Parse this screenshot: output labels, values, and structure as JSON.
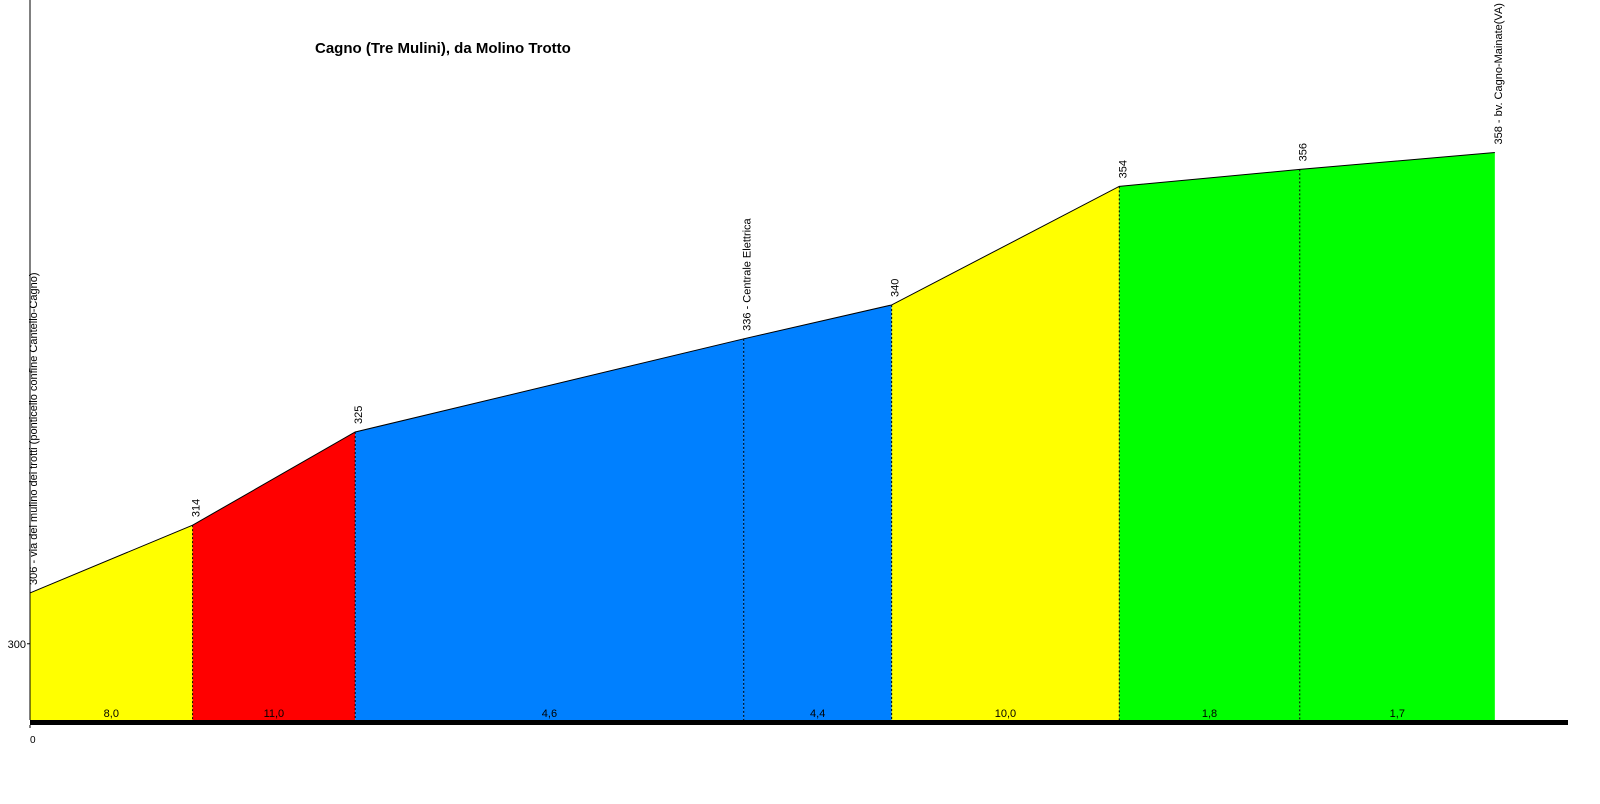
{
  "chart_data": {
    "type": "elevation-profile",
    "title": "Cagno (Tre Mulini), da Molino Trotto",
    "x": [
      0,
      100,
      200,
      439,
      530,
      670,
      781,
      901
    ],
    "values": [
      306,
      314,
      325,
      336,
      340,
      354,
      356,
      358
    ],
    "value_labels": [
      "306 - via del mulino dei trotti (ponticello confine Cantello-Cagno)",
      "314",
      "325",
      "336 - Centrale Elettrica",
      "340",
      "354",
      "356",
      "358 - bv. Cagno-Mainate(VA)"
    ],
    "segments": {
      "values": [
        8.0,
        11.0,
        4.6,
        4.4,
        10.0,
        1.8,
        1.7
      ],
      "value_labels": [
        "8,0",
        "11,0",
        "4,6",
        "4,4",
        "10,0",
        "1,8",
        "1,7"
      ],
      "colors": [
        "#ffff00",
        "#ff0000",
        "#0080ff",
        "#0080ff",
        "#ffff00",
        "#00ff00",
        "#00ff00"
      ]
    },
    "xlim": [
      0,
      946
    ],
    "ylim": [
      291,
      376
    ],
    "xticks": [
      0
    ],
    "yticks": [
      300
    ]
  }
}
